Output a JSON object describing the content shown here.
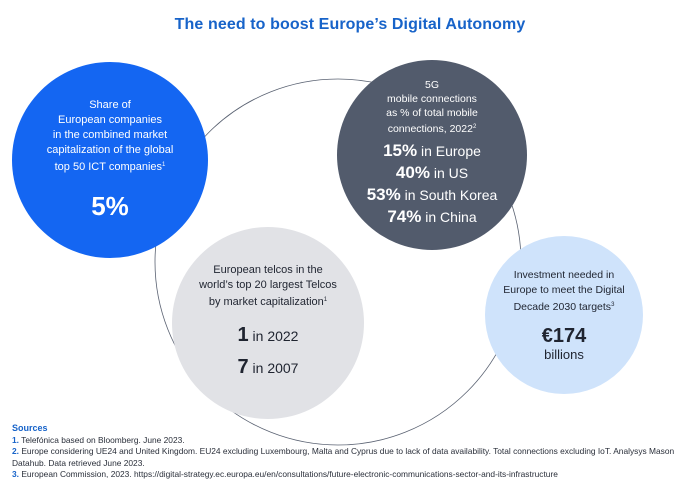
{
  "title": "The need to boost Europe’s Digital Autonomy",
  "circles": {
    "share": {
      "desc_lines": [
        "Share of",
        "European companies",
        "in the combined market",
        "capitalization of the global",
        "top 50 ICT companies"
      ],
      "ref": "1",
      "value": "5%"
    },
    "fiveg": {
      "desc_lines": [
        "5G",
        "mobile connections",
        "as % of total mobile",
        "connections, 2022"
      ],
      "ref": "2",
      "stats": [
        {
          "value": "15%",
          "label": " in Europe"
        },
        {
          "value": "40%",
          "label": " in US"
        },
        {
          "value": "53%",
          "label": " in South Korea"
        },
        {
          "value": "74%",
          "label": " in China"
        }
      ]
    },
    "telcos": {
      "desc_lines": [
        "European telcos in the",
        "world’s top 20 largest Telcos",
        "by market capitalization"
      ],
      "ref": "1",
      "stats": [
        {
          "value": "1",
          "label": " in 2022"
        },
        {
          "value": "7",
          "label": " in 2007"
        }
      ]
    },
    "investment": {
      "desc_lines": [
        "Investment needed in",
        "Europe to meet the Digital",
        "Decade 2030 targets"
      ],
      "ref": "3",
      "value": "€174",
      "unit": "billions"
    }
  },
  "sources": {
    "heading": "Sources",
    "items": [
      {
        "num": "1.",
        "text": " Telefónica based on Bloomberg. June 2023."
      },
      {
        "num": "2.",
        "text": " Europe considering UE24 and United Kingdom. EU24 excluding Luxembourg, Malta and Cyprus due to lack of data availability. Total connections excluding IoT. Analysys Mason Datahub. Data retrieved June 2023."
      },
      {
        "num": "3.",
        "text": " European Commission, 2023. https://digital-strategy.ec.europa.eu/en/consultations/future-electronic-communications-sector-and-its-infrastructure"
      }
    ]
  },
  "colors": {
    "accent": "#1763c9",
    "share_circle": "#1466f2",
    "fiveg_circle": "#525b6c",
    "telcos_circle": "#e1e2e6",
    "investment_circle": "#cfe3fb"
  }
}
